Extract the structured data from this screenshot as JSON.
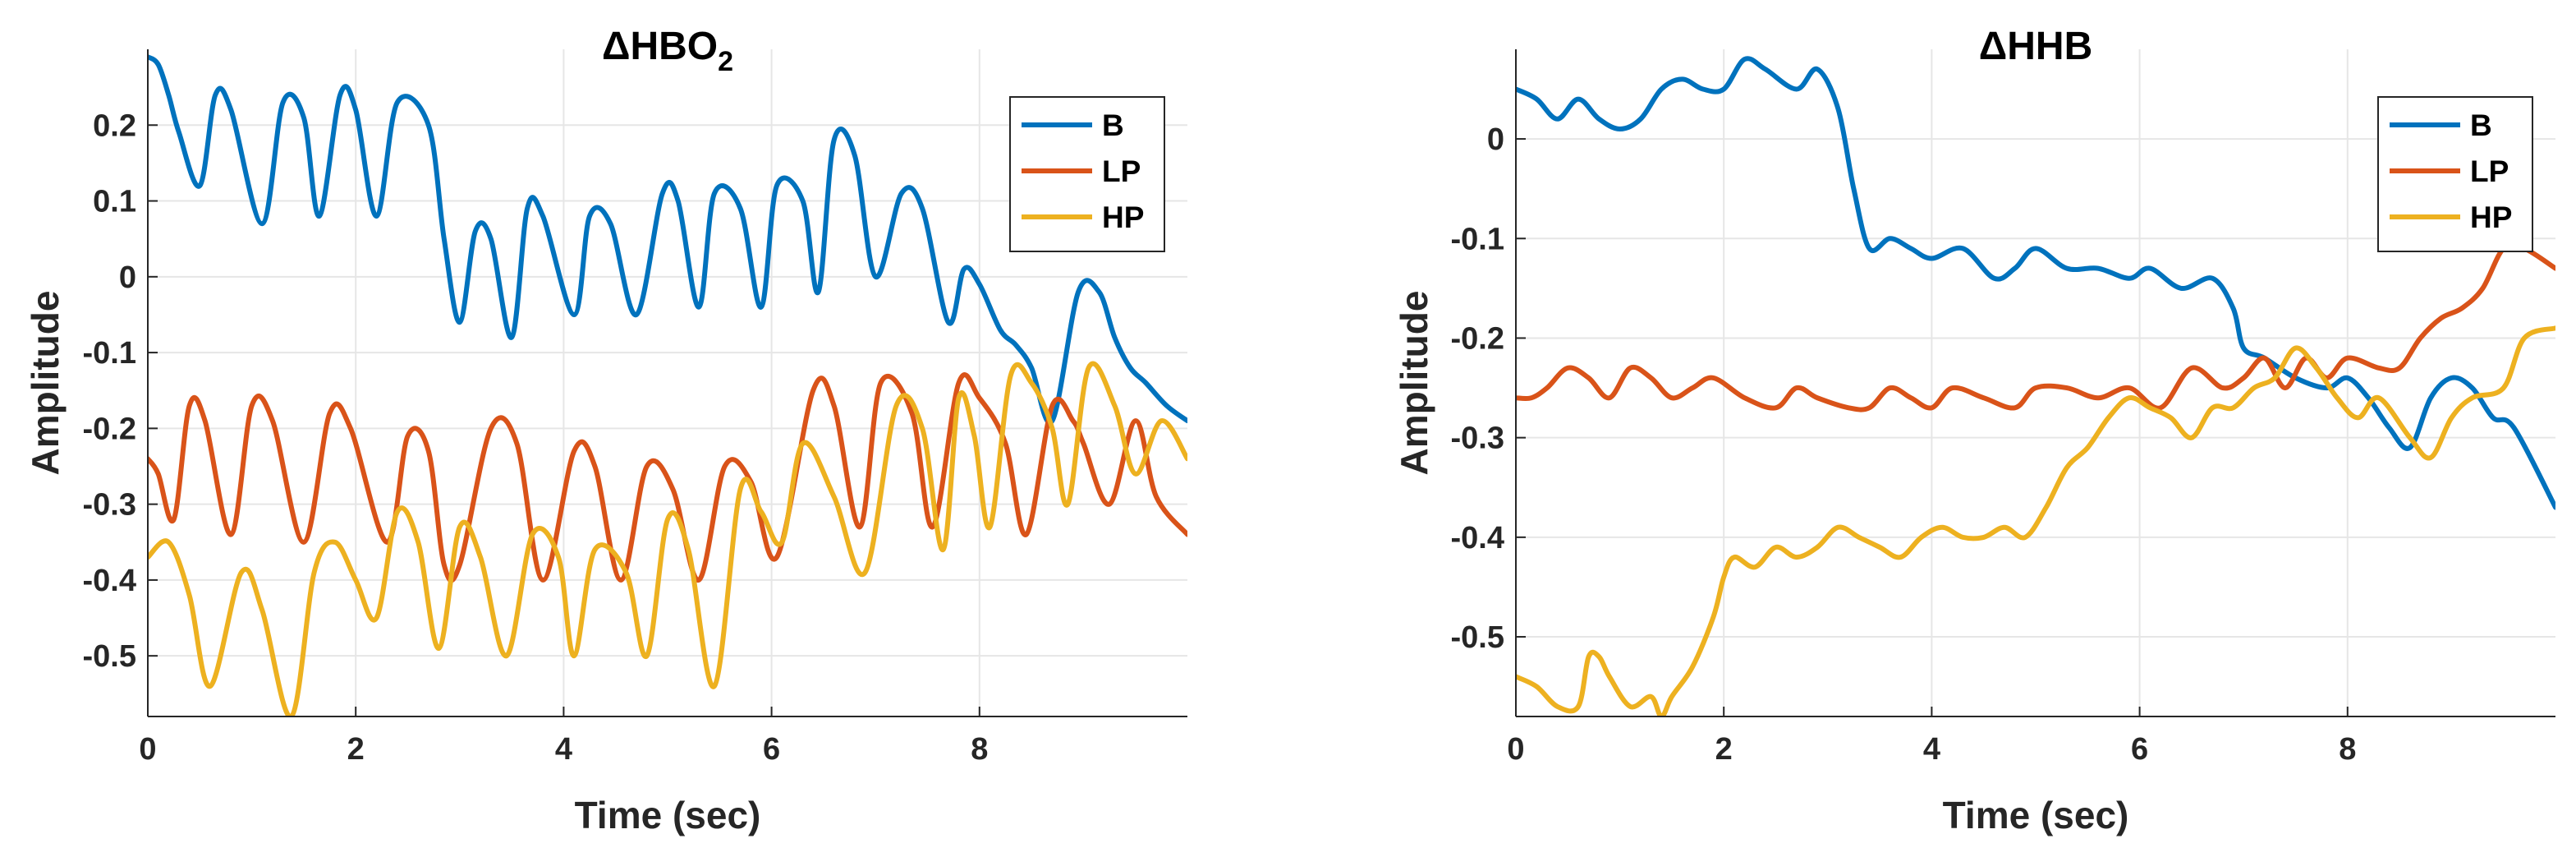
{
  "chart_data": [
    {
      "type": "line",
      "title": "ΔHBO",
      "title_subscript": "2",
      "xlabel": "Time (sec)",
      "ylabel": "Amplitude",
      "xlim": [
        0,
        10
      ],
      "ylim": [
        -0.58,
        0.3
      ],
      "xticks": [
        0,
        2,
        4,
        6,
        8
      ],
      "xtick_labels": [
        "0",
        "2",
        "4",
        "6",
        "8"
      ],
      "yticks": [
        0.2,
        0.1,
        0,
        -0.1,
        -0.2,
        -0.3,
        -0.4,
        -0.5
      ],
      "ytick_labels": [
        "0.2",
        "0.1",
        "0",
        "-0.1",
        "-0.2",
        "-0.3",
        "-0.4",
        "-0.5"
      ],
      "grid": true,
      "legend_position": "top-right",
      "series": [
        {
          "name": "B",
          "color": "#0072BD",
          "x": [
            0,
            0.1,
            0.2,
            0.3,
            0.5,
            0.65,
            0.8,
            1.1,
            1.3,
            1.5,
            1.65,
            1.85,
            2.0,
            2.2,
            2.4,
            2.7,
            2.85,
            3.0,
            3.15,
            3.3,
            3.5,
            3.65,
            3.8,
            4.1,
            4.25,
            4.45,
            4.7,
            4.95,
            5.1,
            5.3,
            5.45,
            5.7,
            5.9,
            6.05,
            6.3,
            6.45,
            6.6,
            6.8,
            7.0,
            7.25,
            7.45,
            7.7,
            7.85,
            8.0,
            8.2,
            8.35,
            8.5,
            8.7,
            8.95,
            9.15,
            9.3,
            9.45,
            9.6,
            9.8,
            10
          ],
          "y": [
            0.29,
            0.28,
            0.24,
            0.19,
            0.12,
            0.24,
            0.22,
            0.07,
            0.23,
            0.21,
            0.08,
            0.24,
            0.22,
            0.08,
            0.23,
            0.2,
            0.05,
            -0.06,
            0.06,
            0.05,
            -0.08,
            0.09,
            0.08,
            -0.05,
            0.08,
            0.07,
            -0.05,
            0.11,
            0.1,
            -0.04,
            0.11,
            0.09,
            -0.04,
            0.12,
            0.1,
            -0.02,
            0.18,
            0.16,
            0.0,
            0.11,
            0.09,
            -0.06,
            0.01,
            -0.01,
            -0.07,
            -0.09,
            -0.12,
            -0.19,
            -0.02,
            -0.02,
            -0.08,
            -0.12,
            -0.14,
            -0.17,
            -0.19
          ]
        },
        {
          "name": "LP",
          "color": "#D95319",
          "x": [
            0,
            0.1,
            0.25,
            0.4,
            0.55,
            0.8,
            1.0,
            1.2,
            1.5,
            1.75,
            1.95,
            2.3,
            2.5,
            2.7,
            2.85,
            3.0,
            3.3,
            3.55,
            3.8,
            4.1,
            4.3,
            4.55,
            4.8,
            5.05,
            5.3,
            5.55,
            5.8,
            6.05,
            6.4,
            6.6,
            6.85,
            7.05,
            7.35,
            7.55,
            7.8,
            8.0,
            8.25,
            8.45,
            8.7,
            8.9,
            9.0,
            9.25,
            9.5,
            9.7,
            10
          ],
          "y": [
            -0.24,
            -0.26,
            -0.32,
            -0.17,
            -0.19,
            -0.34,
            -0.17,
            -0.19,
            -0.35,
            -0.18,
            -0.2,
            -0.35,
            -0.21,
            -0.23,
            -0.38,
            -0.38,
            -0.2,
            -0.22,
            -0.4,
            -0.23,
            -0.25,
            -0.4,
            -0.25,
            -0.28,
            -0.4,
            -0.25,
            -0.27,
            -0.37,
            -0.15,
            -0.17,
            -0.33,
            -0.14,
            -0.18,
            -0.33,
            -0.14,
            -0.16,
            -0.22,
            -0.34,
            -0.17,
            -0.19,
            -0.22,
            -0.3,
            -0.19,
            -0.29,
            -0.34
          ]
        },
        {
          "name": "HP",
          "color": "#EDB120",
          "x": [
            0,
            0.2,
            0.4,
            0.6,
            0.9,
            1.1,
            1.38,
            1.6,
            1.8,
            2.0,
            2.2,
            2.4,
            2.6,
            2.8,
            3.0,
            3.2,
            3.45,
            3.7,
            3.95,
            4.1,
            4.3,
            4.6,
            4.8,
            5.0,
            5.2,
            5.45,
            5.7,
            5.9,
            6.1,
            6.3,
            6.6,
            6.9,
            7.2,
            7.45,
            7.65,
            7.8,
            7.95,
            8.1,
            8.3,
            8.5,
            8.7,
            8.85,
            9.05,
            9.3,
            9.5,
            9.75,
            10
          ],
          "y": [
            -0.37,
            -0.35,
            -0.42,
            -0.54,
            -0.39,
            -0.44,
            -0.58,
            -0.39,
            -0.35,
            -0.4,
            -0.45,
            -0.31,
            -0.35,
            -0.49,
            -0.33,
            -0.37,
            -0.5,
            -0.34,
            -0.37,
            -0.5,
            -0.36,
            -0.39,
            -0.5,
            -0.32,
            -0.36,
            -0.54,
            -0.28,
            -0.31,
            -0.35,
            -0.22,
            -0.29,
            -0.39,
            -0.17,
            -0.2,
            -0.36,
            -0.16,
            -0.21,
            -0.33,
            -0.13,
            -0.14,
            -0.2,
            -0.3,
            -0.12,
            -0.17,
            -0.26,
            -0.19,
            -0.24
          ]
        }
      ],
      "legend_entries": [
        "B",
        "LP",
        "HP"
      ]
    },
    {
      "type": "line",
      "title": "ΔHHB",
      "xlabel": "Time (sec)",
      "ylabel": "Amplitude",
      "xlim": [
        0,
        10
      ],
      "ylim": [
        -0.58,
        0.09
      ],
      "xticks": [
        0,
        2,
        4,
        6,
        8
      ],
      "xtick_labels": [
        "0",
        "2",
        "4",
        "6",
        "8"
      ],
      "yticks": [
        0,
        -0.1,
        -0.2,
        -0.3,
        -0.4,
        -0.5
      ],
      "ytick_labels": [
        "0",
        "-0.1",
        "-0.2",
        "-0.3",
        "-0.4",
        "-0.5"
      ],
      "grid": true,
      "legend_position": "top-right",
      "series": [
        {
          "name": "B",
          "color": "#0072BD",
          "x": [
            0,
            0.2,
            0.4,
            0.6,
            0.8,
            1.0,
            1.2,
            1.4,
            1.6,
            1.8,
            2.0,
            2.2,
            2.4,
            2.7,
            2.9,
            3.1,
            3.25,
            3.4,
            3.6,
            3.8,
            4.0,
            4.3,
            4.6,
            4.8,
            5.0,
            5.3,
            5.6,
            5.9,
            6.1,
            6.4,
            6.7,
            6.9,
            7.0,
            7.2,
            7.5,
            7.8,
            8.0,
            8.2,
            8.4,
            8.6,
            8.8,
            9.0,
            9.2,
            9.4,
            9.6,
            10
          ],
          "y": [
            0.05,
            0.04,
            0.02,
            0.04,
            0.02,
            0.01,
            0.02,
            0.05,
            0.06,
            0.05,
            0.05,
            0.08,
            0.07,
            0.05,
            0.07,
            0.03,
            -0.05,
            -0.11,
            -0.1,
            -0.11,
            -0.12,
            -0.11,
            -0.14,
            -0.13,
            -0.11,
            -0.13,
            -0.13,
            -0.14,
            -0.13,
            -0.15,
            -0.14,
            -0.17,
            -0.21,
            -0.22,
            -0.24,
            -0.25,
            -0.24,
            -0.26,
            -0.29,
            -0.31,
            -0.26,
            -0.24,
            -0.25,
            -0.28,
            -0.29,
            -0.37
          ]
        },
        {
          "name": "LP",
          "color": "#D95319",
          "x": [
            0,
            0.15,
            0.3,
            0.5,
            0.7,
            0.9,
            1.1,
            1.3,
            1.5,
            1.7,
            1.9,
            2.2,
            2.5,
            2.7,
            2.9,
            3.2,
            3.4,
            3.6,
            3.8,
            4.0,
            4.2,
            4.5,
            4.8,
            5.0,
            5.3,
            5.6,
            5.9,
            6.2,
            6.5,
            6.8,
            7.0,
            7.2,
            7.4,
            7.6,
            7.8,
            8.0,
            8.3,
            8.5,
            8.7,
            8.9,
            9.1,
            9.3,
            9.5,
            9.7,
            10
          ],
          "y": [
            -0.26,
            -0.26,
            -0.25,
            -0.23,
            -0.24,
            -0.26,
            -0.23,
            -0.24,
            -0.26,
            -0.25,
            -0.24,
            -0.26,
            -0.27,
            -0.25,
            -0.26,
            -0.27,
            -0.27,
            -0.25,
            -0.26,
            -0.27,
            -0.25,
            -0.26,
            -0.27,
            -0.25,
            -0.25,
            -0.26,
            -0.25,
            -0.27,
            -0.23,
            -0.25,
            -0.24,
            -0.22,
            -0.25,
            -0.22,
            -0.24,
            -0.22,
            -0.23,
            -0.23,
            -0.2,
            -0.18,
            -0.17,
            -0.15,
            -0.11,
            -0.11,
            -0.13
          ]
        },
        {
          "name": "HP",
          "color": "#EDB120",
          "x": [
            0,
            0.2,
            0.4,
            0.6,
            0.7,
            0.8,
            0.9,
            1.1,
            1.3,
            1.4,
            1.5,
            1.7,
            1.9,
            2.0,
            2.1,
            2.3,
            2.5,
            2.7,
            2.9,
            3.1,
            3.3,
            3.5,
            3.7,
            3.9,
            4.1,
            4.3,
            4.5,
            4.7,
            4.9,
            5.1,
            5.3,
            5.5,
            5.7,
            5.9,
            6.1,
            6.3,
            6.5,
            6.7,
            6.9,
            7.1,
            7.3,
            7.5,
            7.7,
            7.9,
            8.1,
            8.3,
            8.6,
            8.8,
            9.0,
            9.2,
            9.5,
            9.7,
            10
          ],
          "y": [
            -0.54,
            -0.55,
            -0.57,
            -0.57,
            -0.52,
            -0.52,
            -0.54,
            -0.57,
            -0.56,
            -0.58,
            -0.56,
            -0.53,
            -0.48,
            -0.44,
            -0.42,
            -0.43,
            -0.41,
            -0.42,
            -0.41,
            -0.39,
            -0.4,
            -0.41,
            -0.42,
            -0.4,
            -0.39,
            -0.4,
            -0.4,
            -0.39,
            -0.4,
            -0.37,
            -0.33,
            -0.31,
            -0.28,
            -0.26,
            -0.27,
            -0.28,
            -0.3,
            -0.27,
            -0.27,
            -0.25,
            -0.24,
            -0.21,
            -0.23,
            -0.26,
            -0.28,
            -0.26,
            -0.3,
            -0.32,
            -0.28,
            -0.26,
            -0.25,
            -0.2,
            -0.19
          ]
        }
      ],
      "legend_entries": [
        "B",
        "LP",
        "HP"
      ]
    }
  ]
}
